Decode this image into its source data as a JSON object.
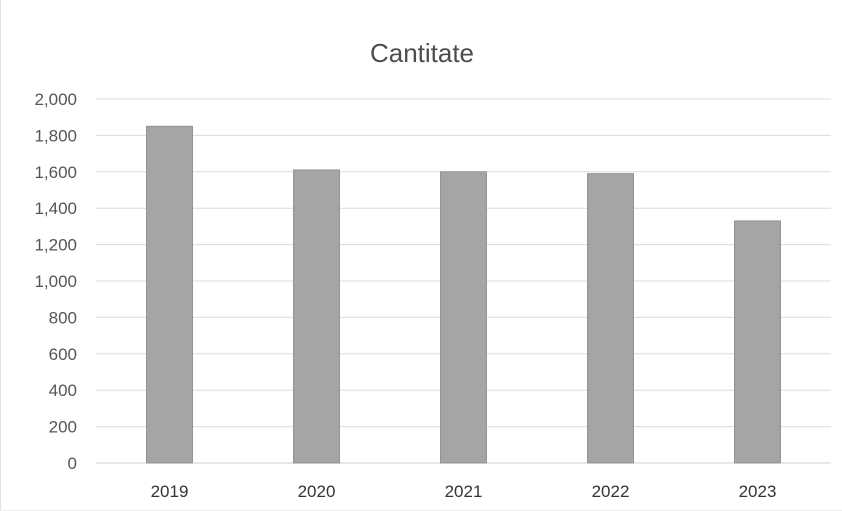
{
  "chart_data": {
    "type": "bar",
    "title": "Cantitate",
    "categories": [
      "2019",
      "2020",
      "2021",
      "2022",
      "2023"
    ],
    "values": [
      1850,
      1610,
      1600,
      1590,
      1330
    ],
    "ylim": [
      0,
      2000
    ],
    "yticks": [
      "0",
      "200",
      "400",
      "600",
      "800",
      "1,000",
      "1,200",
      "1,400",
      "1,600",
      "1,800",
      "2,000"
    ],
    "xlabel": "",
    "ylabel": "",
    "grid": true,
    "legend": "none",
    "colors": {
      "bar": "#a5a5a5",
      "bar_edge": "#939393",
      "grid": "#dcdcdc",
      "axis": "#cfcfcf",
      "faded_label": "#b0b0b0"
    }
  }
}
